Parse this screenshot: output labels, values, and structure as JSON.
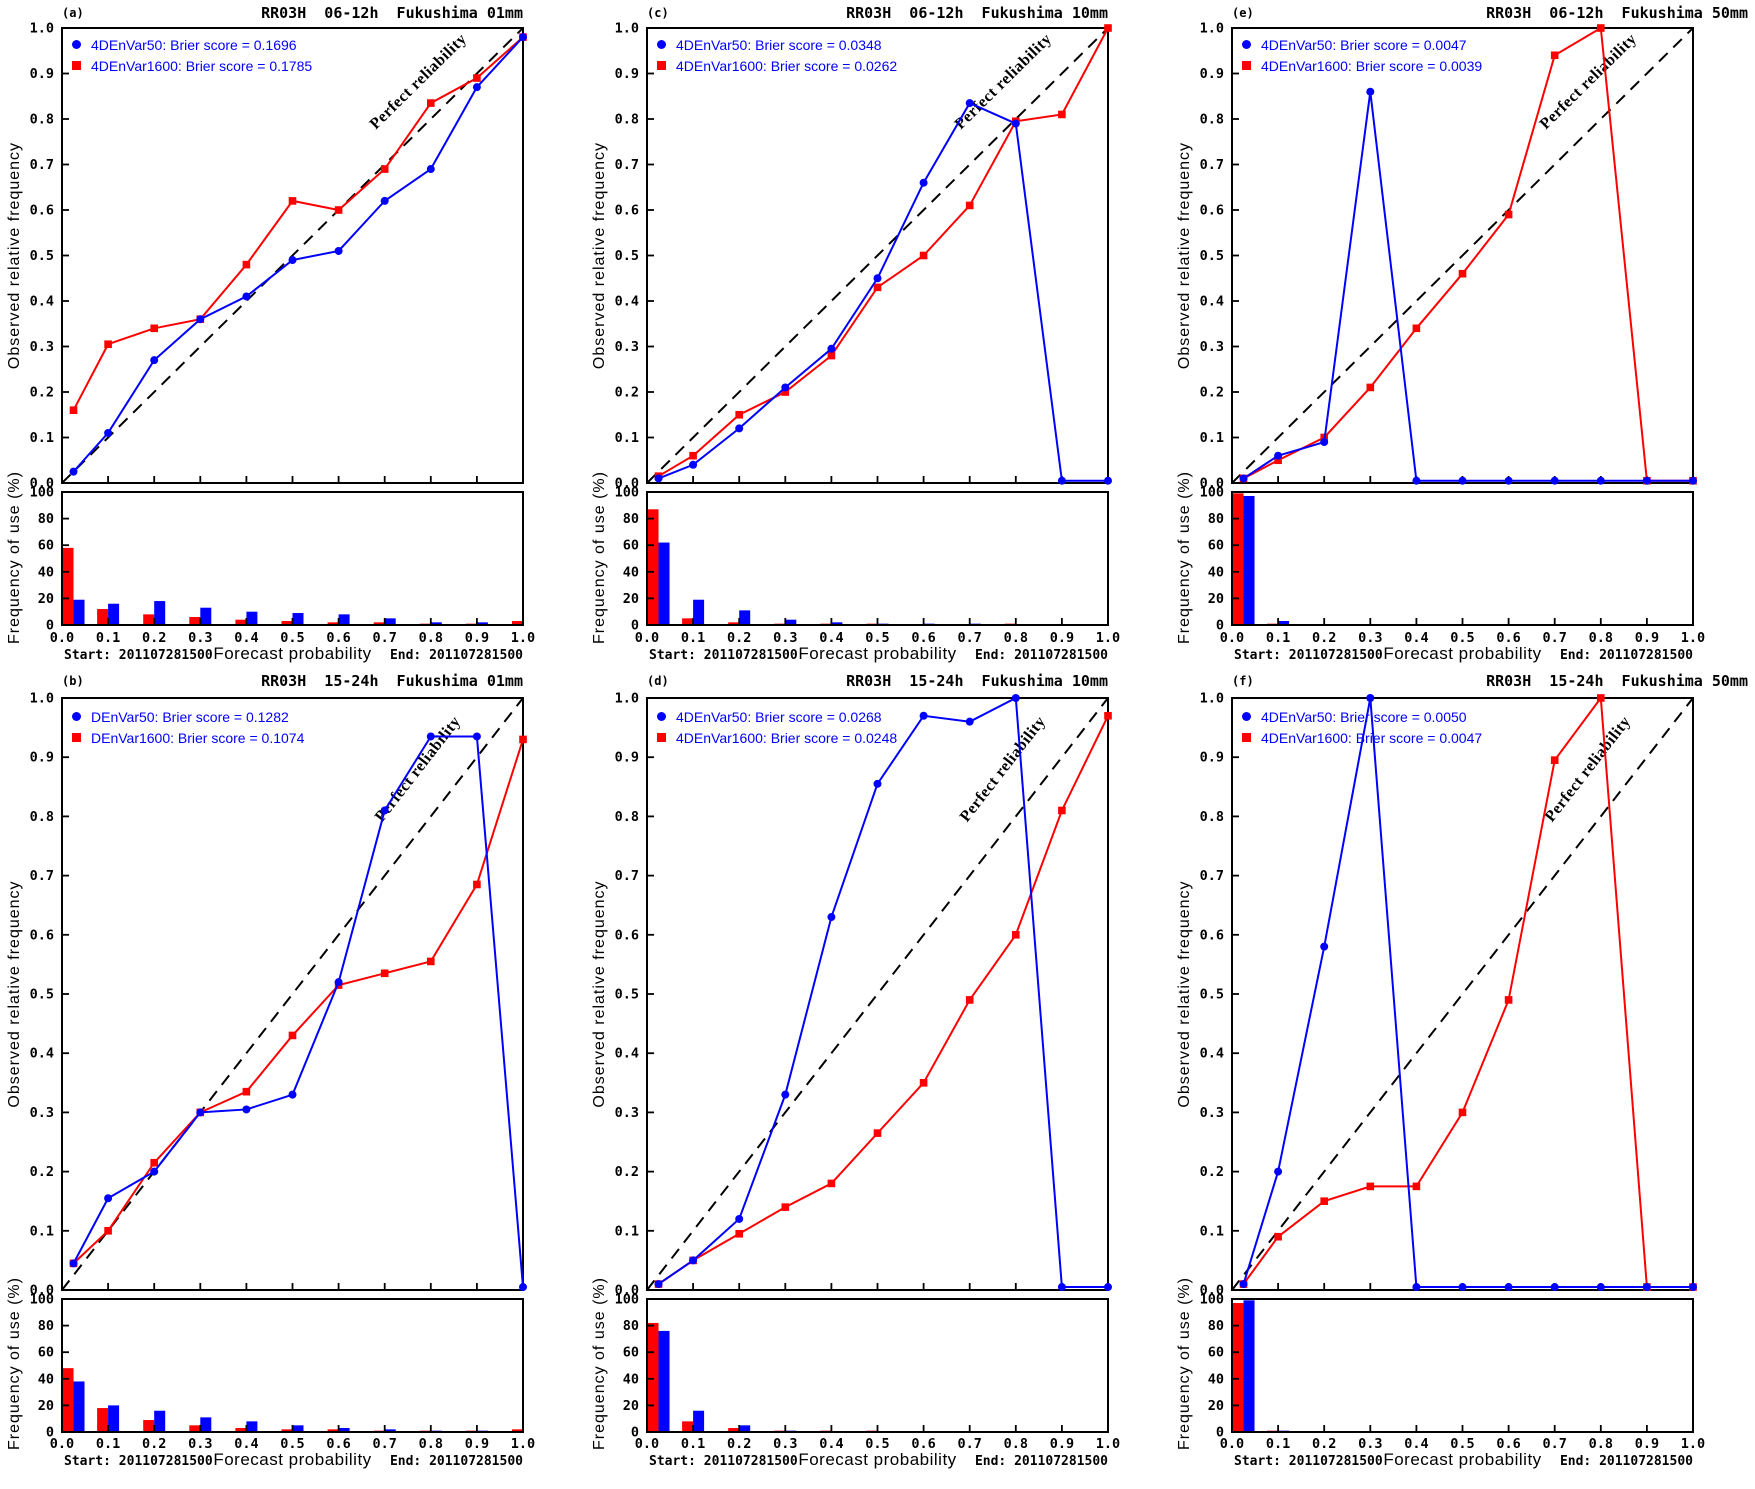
{
  "colors": {
    "blue": "#0000ff",
    "red": "#ff0000",
    "frame": "#000000",
    "background": "#ffffff"
  },
  "axes": {
    "xlabel": "Forecast probability",
    "ylabel_reliability": "Observed  relative  frequency",
    "ylabel_histogram": "Frequency of use (%)",
    "start_label": "Start: 201107281500",
    "end_label": "End: 201107281500",
    "perfect_label": "Perfect reliability",
    "x_tick_labels": [
      "0.0",
      "0.1",
      "0.2",
      "0.3",
      "0.4",
      "0.5",
      "0.6",
      "0.7",
      "0.8",
      "0.9",
      "1.0"
    ],
    "y_tick_labels_reliability": [
      "0.0",
      "0.1",
      "0.2",
      "0.3",
      "0.4",
      "0.5",
      "0.6",
      "0.7",
      "0.8",
      "0.9",
      "1.0"
    ],
    "y_tick_labels_histogram": [
      "0",
      "20",
      "40",
      "60",
      "80",
      "100"
    ],
    "reliability_ylim": [
      0,
      1
    ],
    "histogram_ylim": [
      0,
      100
    ],
    "xlim": [
      0,
      1
    ],
    "grid": false,
    "reference_line": "y=x diagonal, dashed"
  },
  "chart_data": [
    {
      "panel_label": "(a)",
      "title": "RR03H  06-12h  Fukushima 01mm",
      "type": "line",
      "x": [
        0.025,
        0.1,
        0.2,
        0.3,
        0.4,
        0.5,
        0.6,
        0.7,
        0.8,
        0.9,
        1.0
      ],
      "series": [
        {
          "name": "4DEnVar50",
          "color": "#0000ff",
          "marker": "circle",
          "legend": "4DEnVar50: Brier score = 0.1696",
          "observed_relative_frequency": [
            0.025,
            0.11,
            0.27,
            0.36,
            0.41,
            0.49,
            0.51,
            0.62,
            0.69,
            0.87,
            0.98
          ],
          "frequency_of_use_pct": [
            19,
            16,
            18,
            13,
            10,
            9,
            8,
            5,
            2,
            2,
            1
          ]
        },
        {
          "name": "4DEnVar1600",
          "color": "#ff0000",
          "marker": "square",
          "legend": "4DEnVar1600: Brier score = 0.1785",
          "observed_relative_frequency": [
            0.16,
            0.305,
            0.34,
            0.36,
            0.48,
            0.62,
            0.6,
            0.69,
            0.835,
            0.89,
            0.98
          ],
          "frequency_of_use_pct": [
            58,
            12,
            8,
            6,
            4,
            3,
            2,
            2,
            1,
            1,
            3
          ]
        }
      ]
    },
    {
      "panel_label": "(b)",
      "title": "RR03H  15-24h  Fukushima 01mm",
      "type": "line",
      "x": [
        0.025,
        0.1,
        0.2,
        0.3,
        0.4,
        0.5,
        0.6,
        0.7,
        0.8,
        0.9,
        1.0
      ],
      "series": [
        {
          "name": "DEnVar50",
          "color": "#0000ff",
          "marker": "circle",
          "legend": "DEnVar50: Brier score = 0.1282",
          "observed_relative_frequency": [
            0.045,
            0.155,
            0.2,
            0.3,
            0.305,
            0.33,
            0.52,
            0.81,
            0.935,
            0.935,
            0.005
          ],
          "frequency_of_use_pct": [
            38,
            20,
            16,
            11,
            8,
            5,
            3,
            2,
            1,
            1,
            0
          ]
        },
        {
          "name": "DEnVar1600",
          "color": "#ff0000",
          "marker": "square",
          "legend": "DEnVar1600: Brier score = 0.1074",
          "observed_relative_frequency": [
            0.045,
            0.1,
            0.215,
            0.3,
            0.335,
            0.43,
            0.515,
            0.535,
            0.555,
            0.685,
            0.93
          ],
          "frequency_of_use_pct": [
            48,
            18,
            9,
            5,
            3,
            2,
            2,
            1,
            1,
            1,
            2
          ]
        }
      ]
    },
    {
      "panel_label": "(c)",
      "title": "RR03H  06-12h  Fukushima 10mm",
      "type": "line",
      "x": [
        0.025,
        0.1,
        0.2,
        0.3,
        0.4,
        0.5,
        0.6,
        0.7,
        0.8,
        0.9,
        1.0
      ],
      "series": [
        {
          "name": "4DEnVar50",
          "color": "#0000ff",
          "marker": "circle",
          "legend": "4DEnVar50: Brier score = 0.0348",
          "observed_relative_frequency": [
            0.01,
            0.04,
            0.12,
            0.21,
            0.295,
            0.45,
            0.66,
            0.835,
            0.79,
            0.005,
            0.005
          ],
          "frequency_of_use_pct": [
            62,
            19,
            11,
            4,
            2,
            1,
            1,
            1,
            0,
            0,
            0
          ]
        },
        {
          "name": "4DEnVar1600",
          "color": "#ff0000",
          "marker": "square",
          "legend": "4DEnVar1600: Brier score = 0.0262",
          "observed_relative_frequency": [
            0.015,
            0.06,
            0.15,
            0.2,
            0.28,
            0.43,
            0.5,
            0.61,
            0.795,
            0.81,
            1.0
          ],
          "frequency_of_use_pct": [
            87,
            5,
            2,
            1,
            1,
            1,
            0,
            0,
            1,
            0,
            0
          ]
        }
      ]
    },
    {
      "panel_label": "(d)",
      "title": "RR03H  15-24h  Fukushima 10mm",
      "type": "line",
      "x": [
        0.025,
        0.1,
        0.2,
        0.3,
        0.4,
        0.5,
        0.6,
        0.7,
        0.8,
        0.9,
        1.0
      ],
      "series": [
        {
          "name": "4DEnVar50",
          "color": "#0000ff",
          "marker": "circle",
          "legend": "4DEnVar50: Brier score = 0.0268",
          "observed_relative_frequency": [
            0.01,
            0.05,
            0.12,
            0.33,
            0.63,
            0.855,
            0.97,
            0.96,
            1.0,
            0.005,
            0.005
          ],
          "frequency_of_use_pct": [
            76,
            16,
            5,
            1,
            0,
            0,
            0,
            0,
            0,
            0,
            0
          ]
        },
        {
          "name": "4DEnVar1600",
          "color": "#ff0000",
          "marker": "square",
          "legend": "4DEnVar1600: Brier score = 0.0248",
          "observed_relative_frequency": [
            0.01,
            0.05,
            0.095,
            0.14,
            0.18,
            0.265,
            0.35,
            0.49,
            0.6,
            0.81,
            0.97
          ],
          "frequency_of_use_pct": [
            82,
            8,
            3,
            1,
            1,
            1,
            0,
            0,
            0,
            0,
            0
          ]
        }
      ]
    },
    {
      "panel_label": "(e)",
      "title": "RR03H  06-12h  Fukushima 50mm",
      "type": "line",
      "x": [
        0.025,
        0.1,
        0.2,
        0.3,
        0.4,
        0.5,
        0.6,
        0.7,
        0.8,
        0.9,
        1.0
      ],
      "series": [
        {
          "name": "4DEnVar50",
          "color": "#0000ff",
          "marker": "circle",
          "legend": "4DEnVar50: Brier score = 0.0047",
          "observed_relative_frequency": [
            0.01,
            0.06,
            0.09,
            0.86,
            0.005,
            0.005,
            0.005,
            0.005,
            0.005,
            0.005,
            0.005
          ],
          "frequency_of_use_pct": [
            97,
            3,
            0,
            0,
            0,
            0,
            0,
            0,
            0,
            0,
            0
          ]
        },
        {
          "name": "4DEnVar1600",
          "color": "#ff0000",
          "marker": "square",
          "legend": "4DEnVar1600: Brier score = 0.0039",
          "observed_relative_frequency": [
            0.01,
            0.05,
            0.1,
            0.21,
            0.34,
            0.46,
            0.59,
            0.94,
            1.0,
            0.005,
            0.005
          ],
          "frequency_of_use_pct": [
            99,
            1,
            0,
            0,
            0,
            0,
            0,
            0,
            0,
            0,
            0
          ]
        }
      ]
    },
    {
      "panel_label": "(f)",
      "title": "RR03H  15-24h  Fukushima 50mm",
      "type": "line",
      "x": [
        0.025,
        0.1,
        0.2,
        0.3,
        0.4,
        0.5,
        0.6,
        0.7,
        0.8,
        0.9,
        1.0
      ],
      "series": [
        {
          "name": "4DEnVar50",
          "color": "#0000ff",
          "marker": "circle",
          "legend": "4DEnVar50: Brier score = 0.0050",
          "observed_relative_frequency": [
            0.01,
            0.2,
            0.58,
            1.0,
            0.005,
            0.005,
            0.005,
            0.005,
            0.005,
            0.005,
            0.005
          ],
          "frequency_of_use_pct": [
            99,
            1,
            0,
            0,
            0,
            0,
            0,
            0,
            0,
            0,
            0
          ]
        },
        {
          "name": "4DEnVar1600",
          "color": "#ff0000",
          "marker": "square",
          "legend": "4DEnVar1600: Brier score = 0.0047",
          "observed_relative_frequency": [
            0.01,
            0.09,
            0.15,
            0.175,
            0.175,
            0.3,
            0.49,
            0.895,
            1.0,
            0.005,
            0.005
          ],
          "frequency_of_use_pct": [
            97,
            1,
            0,
            0,
            0,
            0,
            0,
            0,
            0,
            0,
            0
          ]
        }
      ]
    }
  ]
}
